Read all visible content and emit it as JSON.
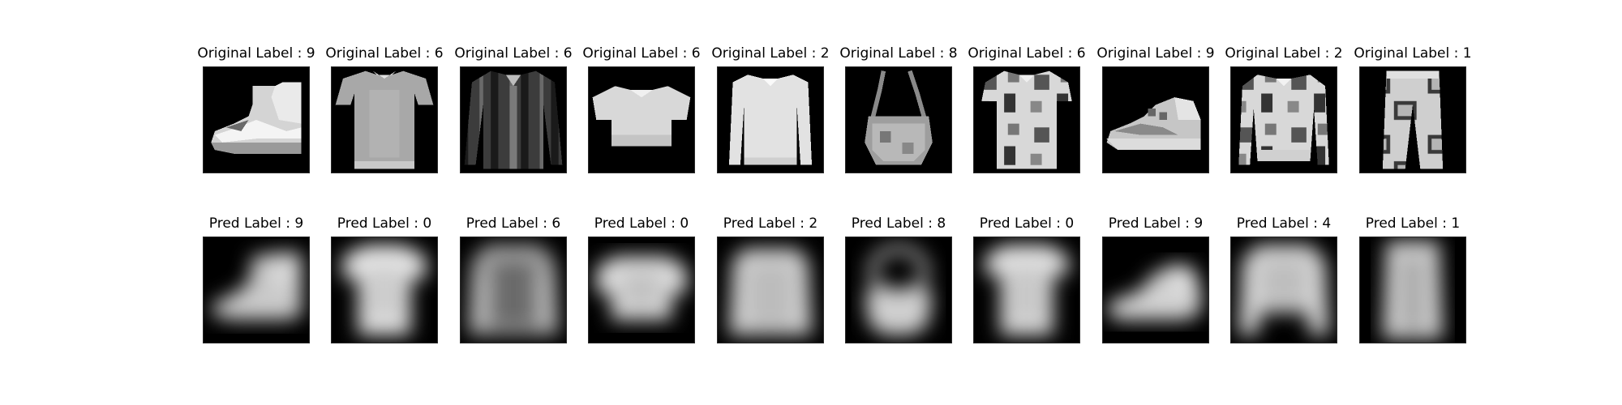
{
  "originals": [
    {
      "label": "Original Label : 9",
      "icon": "ankle-boot"
    },
    {
      "label": "Original Label : 6",
      "icon": "shirt"
    },
    {
      "label": "Original Label : 6",
      "icon": "shirt"
    },
    {
      "label": "Original Label : 6",
      "icon": "shirt"
    },
    {
      "label": "Original Label : 2",
      "icon": "pullover"
    },
    {
      "label": "Original Label : 8",
      "icon": "bag"
    },
    {
      "label": "Original Label : 6",
      "icon": "shirt"
    },
    {
      "label": "Original Label : 9",
      "icon": "ankle-boot"
    },
    {
      "label": "Original Label : 2",
      "icon": "pullover"
    },
    {
      "label": "Original Label : 1",
      "icon": "trouser"
    }
  ],
  "predictions": [
    {
      "label": "Pred Label : 9",
      "icon": "ankle-boot"
    },
    {
      "label": "Pred Label : 0",
      "icon": "t-shirt"
    },
    {
      "label": "Pred Label : 6",
      "icon": "shirt"
    },
    {
      "label": "Pred Label : 0",
      "icon": "t-shirt"
    },
    {
      "label": "Pred Label : 2",
      "icon": "pullover"
    },
    {
      "label": "Pred Label : 8",
      "icon": "bag"
    },
    {
      "label": "Pred Label : 0",
      "icon": "t-shirt"
    },
    {
      "label": "Pred Label : 9",
      "icon": "ankle-boot"
    },
    {
      "label": "Pred Label : 4",
      "icon": "coat"
    },
    {
      "label": "Pred Label : 1",
      "icon": "trouser"
    }
  ],
  "colors": {
    "background": "#ffffff",
    "image_background": "#000000",
    "text": "#000000"
  }
}
